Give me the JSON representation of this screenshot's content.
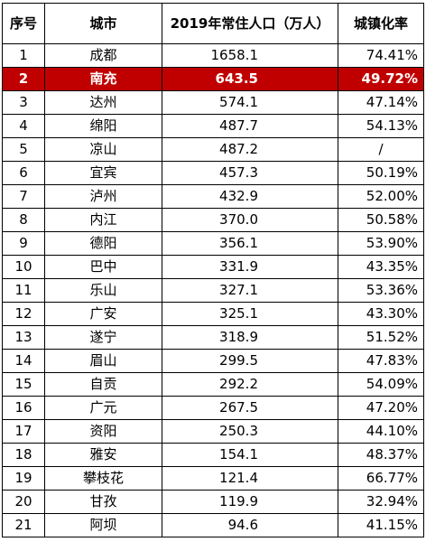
{
  "table": {
    "headers": [
      "序号",
      "城市",
      "2019年常住人口（万人）",
      "城镇化率"
    ],
    "highlight_color": "#c00000",
    "rows": [
      {
        "idx": "1",
        "city": "成都",
        "pop": "1658.1",
        "urb": "74.41%"
      },
      {
        "idx": "2",
        "city": "南充",
        "pop": "643.5",
        "urb": "49.72%",
        "highlight": true
      },
      {
        "idx": "3",
        "city": "达州",
        "pop": "574.1",
        "urb": "47.14%"
      },
      {
        "idx": "4",
        "city": "绵阳",
        "pop": "487.7",
        "urb": "54.13%"
      },
      {
        "idx": "5",
        "city": "凉山",
        "pop": "487.2",
        "urb": "/"
      },
      {
        "idx": "6",
        "city": "宜宾",
        "pop": "457.3",
        "urb": "50.19%"
      },
      {
        "idx": "7",
        "city": "泸州",
        "pop": "432.9",
        "urb": "52.00%"
      },
      {
        "idx": "8",
        "city": "内江",
        "pop": "370.0",
        "urb": "50.58%"
      },
      {
        "idx": "9",
        "city": "德阳",
        "pop": "356.1",
        "urb": "53.90%"
      },
      {
        "idx": "10",
        "city": "巴中",
        "pop": "331.9",
        "urb": "43.35%"
      },
      {
        "idx": "11",
        "city": "乐山",
        "pop": "327.1",
        "urb": "53.36%"
      },
      {
        "idx": "12",
        "city": "广安",
        "pop": "325.1",
        "urb": "43.30%"
      },
      {
        "idx": "13",
        "city": "遂宁",
        "pop": "318.9",
        "urb": "51.52%"
      },
      {
        "idx": "14",
        "city": "眉山",
        "pop": "299.5",
        "urb": "47.83%"
      },
      {
        "idx": "15",
        "city": "自贡",
        "pop": "292.2",
        "urb": "54.09%"
      },
      {
        "idx": "16",
        "city": "广元",
        "pop": "267.5",
        "urb": "47.20%"
      },
      {
        "idx": "17",
        "city": "资阳",
        "pop": "250.3",
        "urb": "44.10%"
      },
      {
        "idx": "18",
        "city": "雅安",
        "pop": "154.1",
        "urb": "48.37%"
      },
      {
        "idx": "19",
        "city": "攀枝花",
        "pop": "121.4",
        "urb": "66.77%"
      },
      {
        "idx": "20",
        "city": "甘孜",
        "pop": "119.9",
        "urb": "32.94%"
      },
      {
        "idx": "21",
        "city": "阿坝",
        "pop": "94.6",
        "urb": "41.15%"
      }
    ]
  }
}
